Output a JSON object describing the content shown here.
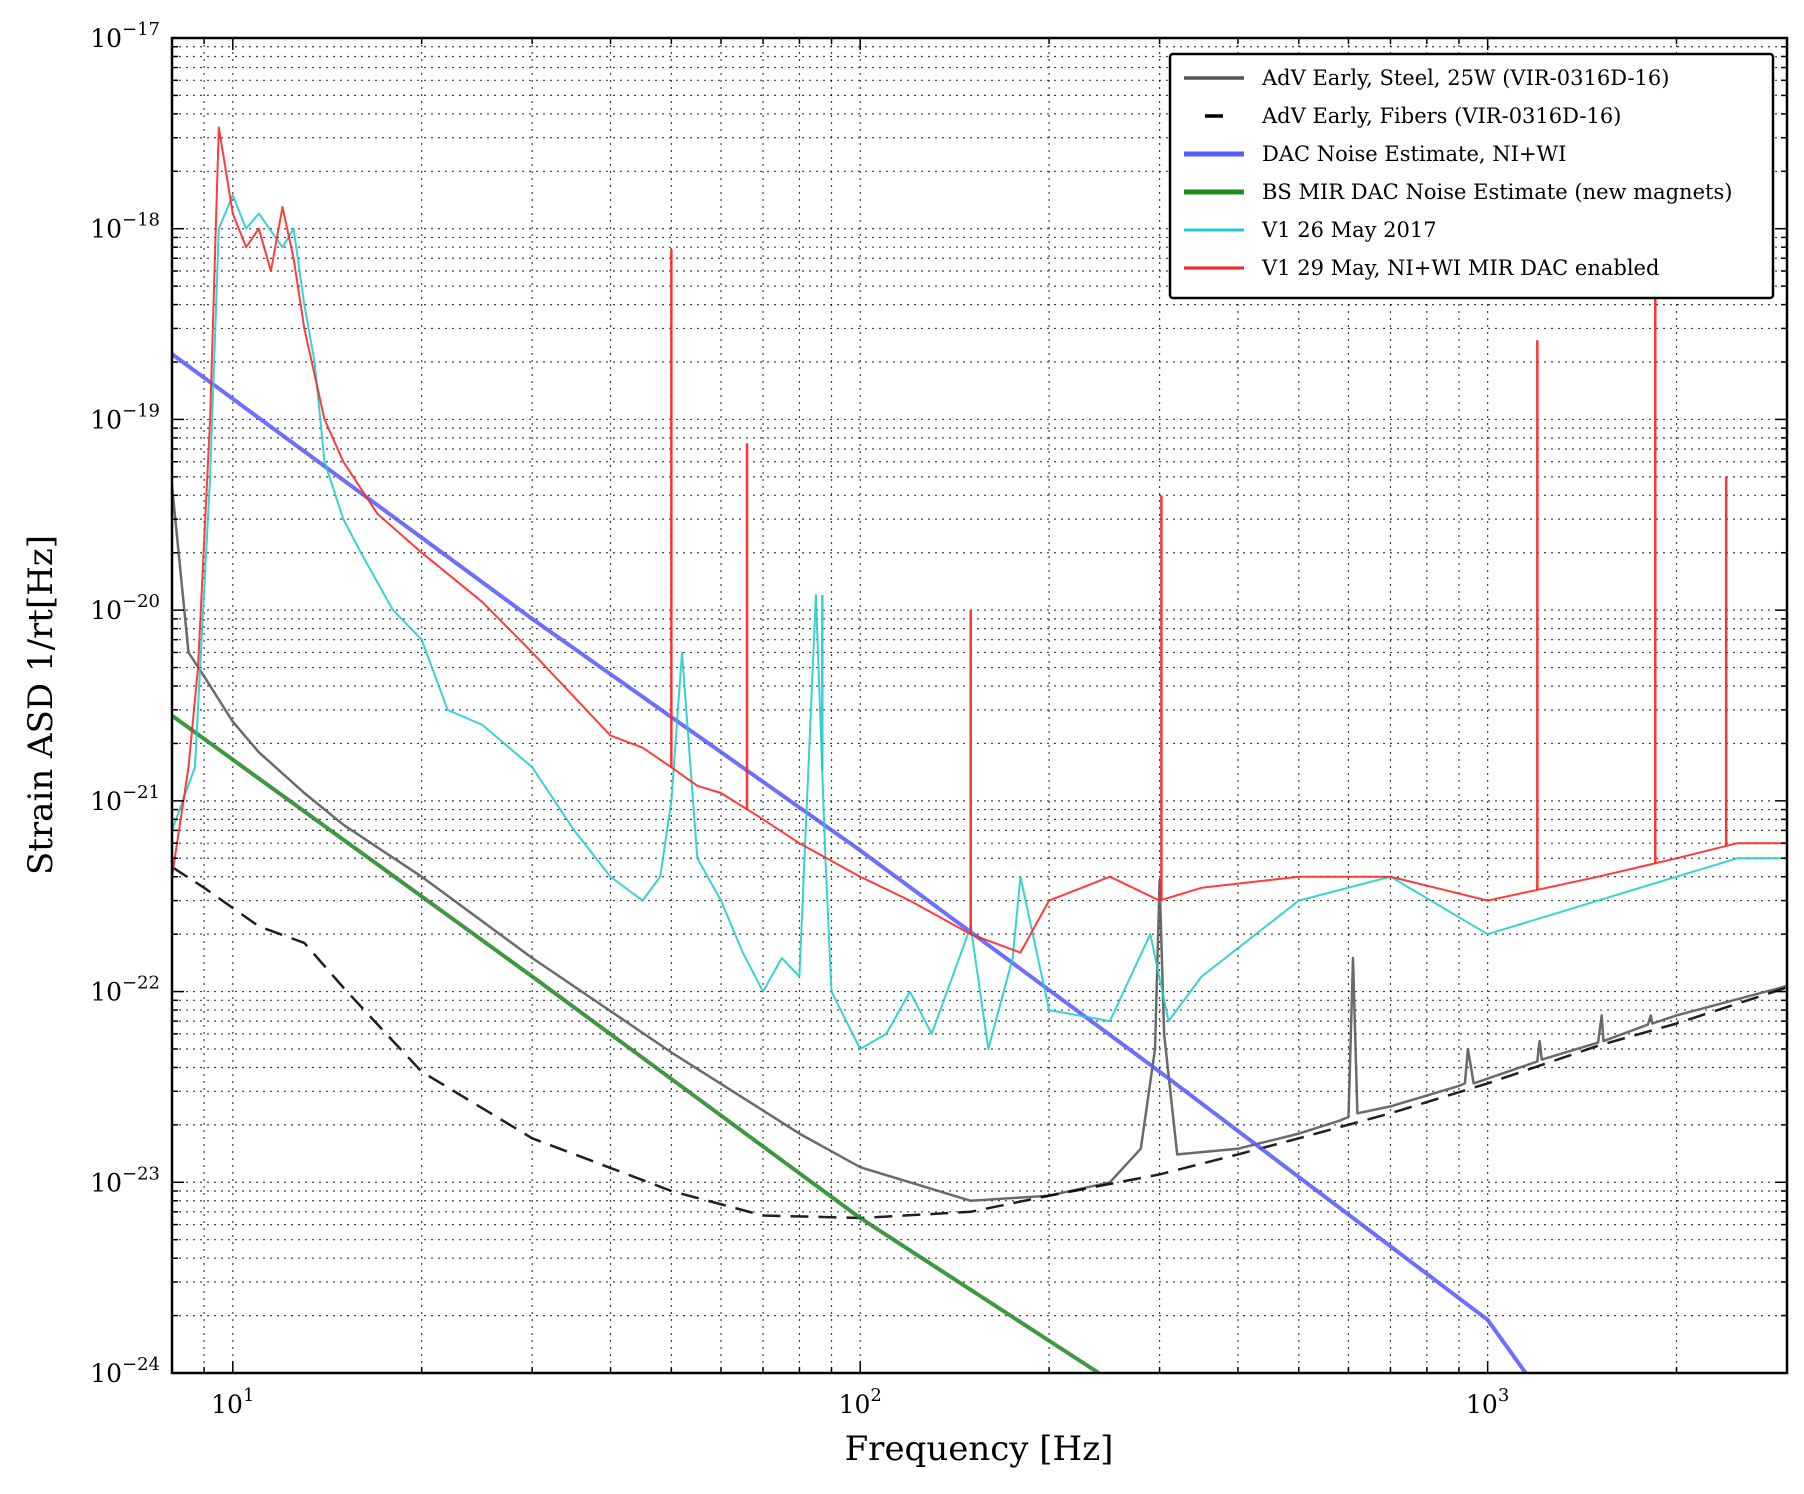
{
  "chart_data": {
    "type": "line",
    "xscale": "log",
    "yscale": "log",
    "xlim": [
      8,
      3000
    ],
    "ylim": [
      1e-24,
      1e-17
    ],
    "xlabel": "Frequency [Hz]",
    "ylabel": "Strain ASD 1/rt[Hz]",
    "grid": true,
    "legend_position": "top-right",
    "x_ticks": [
      {
        "value": 10,
        "base": "10",
        "exp": "1"
      },
      {
        "value": 100,
        "base": "10",
        "exp": "2"
      },
      {
        "value": 1000,
        "base": "10",
        "exp": "3"
      }
    ],
    "y_ticks": [
      {
        "value": 1e-24,
        "base": "10",
        "exp": "−24"
      },
      {
        "value": 1e-23,
        "base": "10",
        "exp": "−23"
      },
      {
        "value": 1e-22,
        "base": "10",
        "exp": "−22"
      },
      {
        "value": 1e-21,
        "base": "10",
        "exp": "−21"
      },
      {
        "value": 1e-20,
        "base": "10",
        "exp": "−20"
      },
      {
        "value": 1e-19,
        "base": "10",
        "exp": "−19"
      },
      {
        "value": 1e-18,
        "base": "10",
        "exp": "−18"
      },
      {
        "value": 1e-17,
        "base": "10",
        "exp": "−17"
      }
    ],
    "series": [
      {
        "name": "AdV Early, Steel, 25W (VIR-0316D-16)",
        "color": "#555555",
        "style": "solid",
        "width": 2.5,
        "x": [
          8,
          8.5,
          9,
          10,
          11,
          13,
          15,
          20,
          30,
          50,
          80,
          100,
          150,
          200,
          250,
          280,
          295,
          300,
          305,
          320,
          400,
          500,
          580,
          600,
          610,
          620,
          700,
          900,
          920,
          930,
          950,
          1200,
          1210,
          1220,
          1500,
          1520,
          1530,
          1800,
          1820,
          1830,
          2000,
          3000
        ],
        "y": [
          4.5e-20,
          6e-21,
          4.5e-21,
          2.6e-21,
          1.8e-21,
          1.1e-21,
          7.5e-22,
          4e-22,
          1.5e-22,
          4.8e-23,
          1.8e-23,
          1.2e-23,
          8e-24,
          8.5e-24,
          1e-23,
          1.5e-23,
          5e-23,
          3.8e-22,
          6e-23,
          1.4e-23,
          1.5e-23,
          1.8e-23,
          2.1e-23,
          2.2e-23,
          1.5e-22,
          2.3e-23,
          2.5e-23,
          3.2e-23,
          3.3e-23,
          5e-23,
          3.3e-23,
          4.3e-23,
          5.5e-23,
          4.4e-23,
          5.4e-23,
          7.5e-23,
          5.5e-23,
          6.7e-23,
          7.5e-23,
          6.8e-23,
          7.5e-23,
          1.07e-22
        ]
      },
      {
        "name": "AdV Early, Fibers (VIR-0316D-16)",
        "color": "#000000",
        "style": "dashed",
        "width": 2.5,
        "x": [
          8,
          9,
          11,
          13,
          15,
          18,
          20,
          30,
          50,
          70,
          100,
          150,
          200,
          300,
          400,
          500,
          700,
          1000,
          1500,
          2000,
          3000
        ],
        "y": [
          4.5e-22,
          3.5e-22,
          2.2e-22,
          1.8e-22,
          1.05e-22,
          5.5e-23,
          3.8e-23,
          1.7e-23,
          9e-24,
          6.7e-24,
          6.5e-24,
          7e-24,
          8.5e-24,
          1.1e-23,
          1.4e-23,
          1.7e-23,
          2.3e-23,
          3.3e-23,
          5.2e-23,
          6.8e-23,
          1.05e-22
        ]
      },
      {
        "name": "DAC Noise Estimate, NI+WI",
        "color": "#5a5aff",
        "style": "solid",
        "width": 4,
        "x": [
          8,
          30,
          100,
          300,
          1000,
          1150
        ],
        "y": [
          2.2e-19,
          9e-21,
          5.5e-22,
          3.8e-23,
          1.9e-24,
          1e-24
        ]
      },
      {
        "name": "BS MIR DAC Noise Estimate (new magnets)",
        "color": "#228b22",
        "style": "solid",
        "width": 4,
        "x": [
          8,
          30,
          100,
          240
        ],
        "y": [
          2.8e-21,
          1.2e-22,
          6.5e-24,
          1e-24
        ]
      },
      {
        "name": "V1 26 May 2017",
        "color": "#1ccccc",
        "style": "solid",
        "width": 2,
        "x": [
          8,
          8.7,
          9.2,
          9.5,
          10,
          10.5,
          11,
          12,
          12.5,
          13,
          13.5,
          14,
          15,
          16,
          18,
          20,
          22,
          25,
          30,
          35,
          40,
          45,
          48,
          50,
          52,
          55,
          60,
          65,
          70,
          75,
          80,
          85,
          88,
          90,
          100,
          110,
          120,
          130,
          150,
          160,
          175,
          180,
          200,
          250,
          290,
          310,
          350,
          500,
          700,
          1000,
          1500,
          2000,
          2500,
          3000
        ],
        "y": [
          7e-22,
          1.5e-21,
          5e-20,
          1e-18,
          1.5e-18,
          1e-18,
          1.2e-18,
          8e-19,
          1e-18,
          4e-19,
          2e-19,
          6e-20,
          3e-20,
          2e-20,
          1e-20,
          7e-21,
          3e-21,
          2.5e-21,
          1.5e-21,
          7e-22,
          4e-22,
          3e-22,
          4e-22,
          1e-21,
          6e-21,
          5e-22,
          3e-22,
          1.6e-22,
          1e-22,
          1.5e-22,
          1.2e-22,
          1.2e-20,
          5e-22,
          1e-22,
          5e-23,
          6e-23,
          1e-22,
          6e-23,
          2.2e-22,
          5e-23,
          1.5e-22,
          4e-22,
          8e-23,
          7e-23,
          2e-22,
          7e-23,
          1.2e-22,
          3e-22,
          4e-22,
          2e-22,
          3e-22,
          4e-22,
          5e-22,
          5e-22
        ]
      },
      {
        "name": "V1 29 May, NI+WI MIR DAC enabled",
        "color": "#ff2020",
        "style": "solid",
        "width": 2,
        "x": [
          8,
          8.5,
          8.8,
          9.2,
          9.5,
          10,
          10.5,
          11,
          11.5,
          12,
          12.5,
          13,
          14,
          15,
          17,
          20,
          25,
          30,
          35,
          40,
          45,
          50,
          55,
          60,
          70,
          80,
          100,
          120,
          150,
          180,
          200,
          250,
          300,
          350,
          500,
          700,
          1000,
          1500,
          2000,
          2500,
          3000
        ],
        "y": [
          4e-22,
          1.5e-21,
          5e-21,
          1e-19,
          3.4e-18,
          1.2e-18,
          8e-19,
          1e-18,
          6e-19,
          1.3e-18,
          7e-19,
          3e-19,
          1e-19,
          6e-20,
          3.2e-20,
          2e-20,
          1.1e-20,
          6e-21,
          3.5e-21,
          2.2e-21,
          1.9e-21,
          1.5e-21,
          1.2e-21,
          1.1e-21,
          8e-22,
          6e-22,
          4e-22,
          3e-22,
          2e-22,
          1.6e-22,
          3e-22,
          4e-22,
          3e-22,
          3.5e-22,
          4e-22,
          4e-22,
          3e-22,
          4e-22,
          5e-22,
          6e-22,
          6e-22
        ]
      }
    ],
    "peaks": [
      {
        "series": "V1 29 May, NI+WI MIR DAC enabled",
        "x": 50,
        "y": 7.8e-19
      },
      {
        "series": "V1 29 May, NI+WI MIR DAC enabled",
        "x": 66,
        "y": 7.5e-20
      },
      {
        "series": "V1 29 May, NI+WI MIR DAC enabled",
        "x": 150,
        "y": 1e-20
      },
      {
        "series": "V1 29 May, NI+WI MIR DAC enabled",
        "x": 302,
        "y": 4e-20
      },
      {
        "series": "V1 29 May, NI+WI MIR DAC enabled",
        "x": 1200,
        "y": 2.6e-19
      },
      {
        "series": "V1 29 May, NI+WI MIR DAC enabled",
        "x": 1850,
        "y": 6e-19
      },
      {
        "series": "V1 29 May, NI+WI MIR DAC enabled",
        "x": 2400,
        "y": 5e-20
      },
      {
        "series": "V1 26 May 2017",
        "x": 87,
        "y": 1.2e-20
      }
    ]
  }
}
